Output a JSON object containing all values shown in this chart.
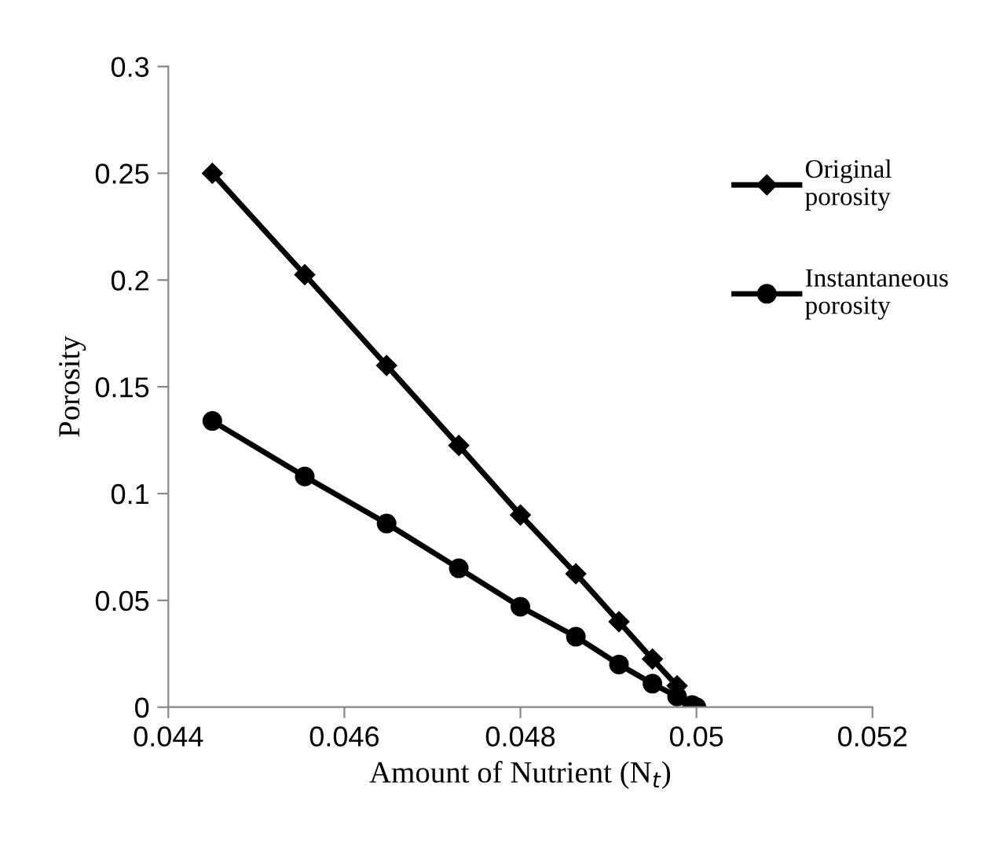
{
  "chart_data": {
    "type": "line",
    "xlabel": "Amount of Nutrient (N$_{t}$)",
    "ylabel": "Porosity",
    "xlim": [
      0.044,
      0.052
    ],
    "xticks": [
      0.044,
      0.046,
      0.048,
      0.05,
      0.052
    ],
    "ylim": [
      0,
      0.3
    ],
    "yticks": [
      0,
      0.05,
      0.1,
      0.15,
      0.2,
      0.25,
      0.3
    ],
    "grid": false,
    "legend": "right",
    "series": [
      {
        "name": "Original porosity",
        "color": "#000000",
        "marker": "diamond",
        "x": [
          0.0445,
          0.04555,
          0.04648,
          0.0473,
          0.048,
          0.04863,
          0.04912,
          0.0495,
          0.04978,
          0.04995,
          0.05
        ],
        "values": [
          0.25,
          0.2025,
          0.16,
          0.1225,
          0.09,
          0.0625,
          0.04,
          0.0225,
          0.01,
          null,
          0
        ]
      },
      {
        "name": "Instantaneous porosity",
        "color": "#000000",
        "marker": "circle",
        "x": [
          0.0445,
          0.04555,
          0.04648,
          0.0473,
          0.048,
          0.04863,
          0.04912,
          0.0495,
          0.04978,
          0.04995,
          0.05
        ],
        "values": [
          0.134,
          0.108,
          0.086,
          0.065,
          0.047,
          0.033,
          0.02,
          0.011,
          0.005,
          0.001,
          0
        ]
      }
    ]
  }
}
